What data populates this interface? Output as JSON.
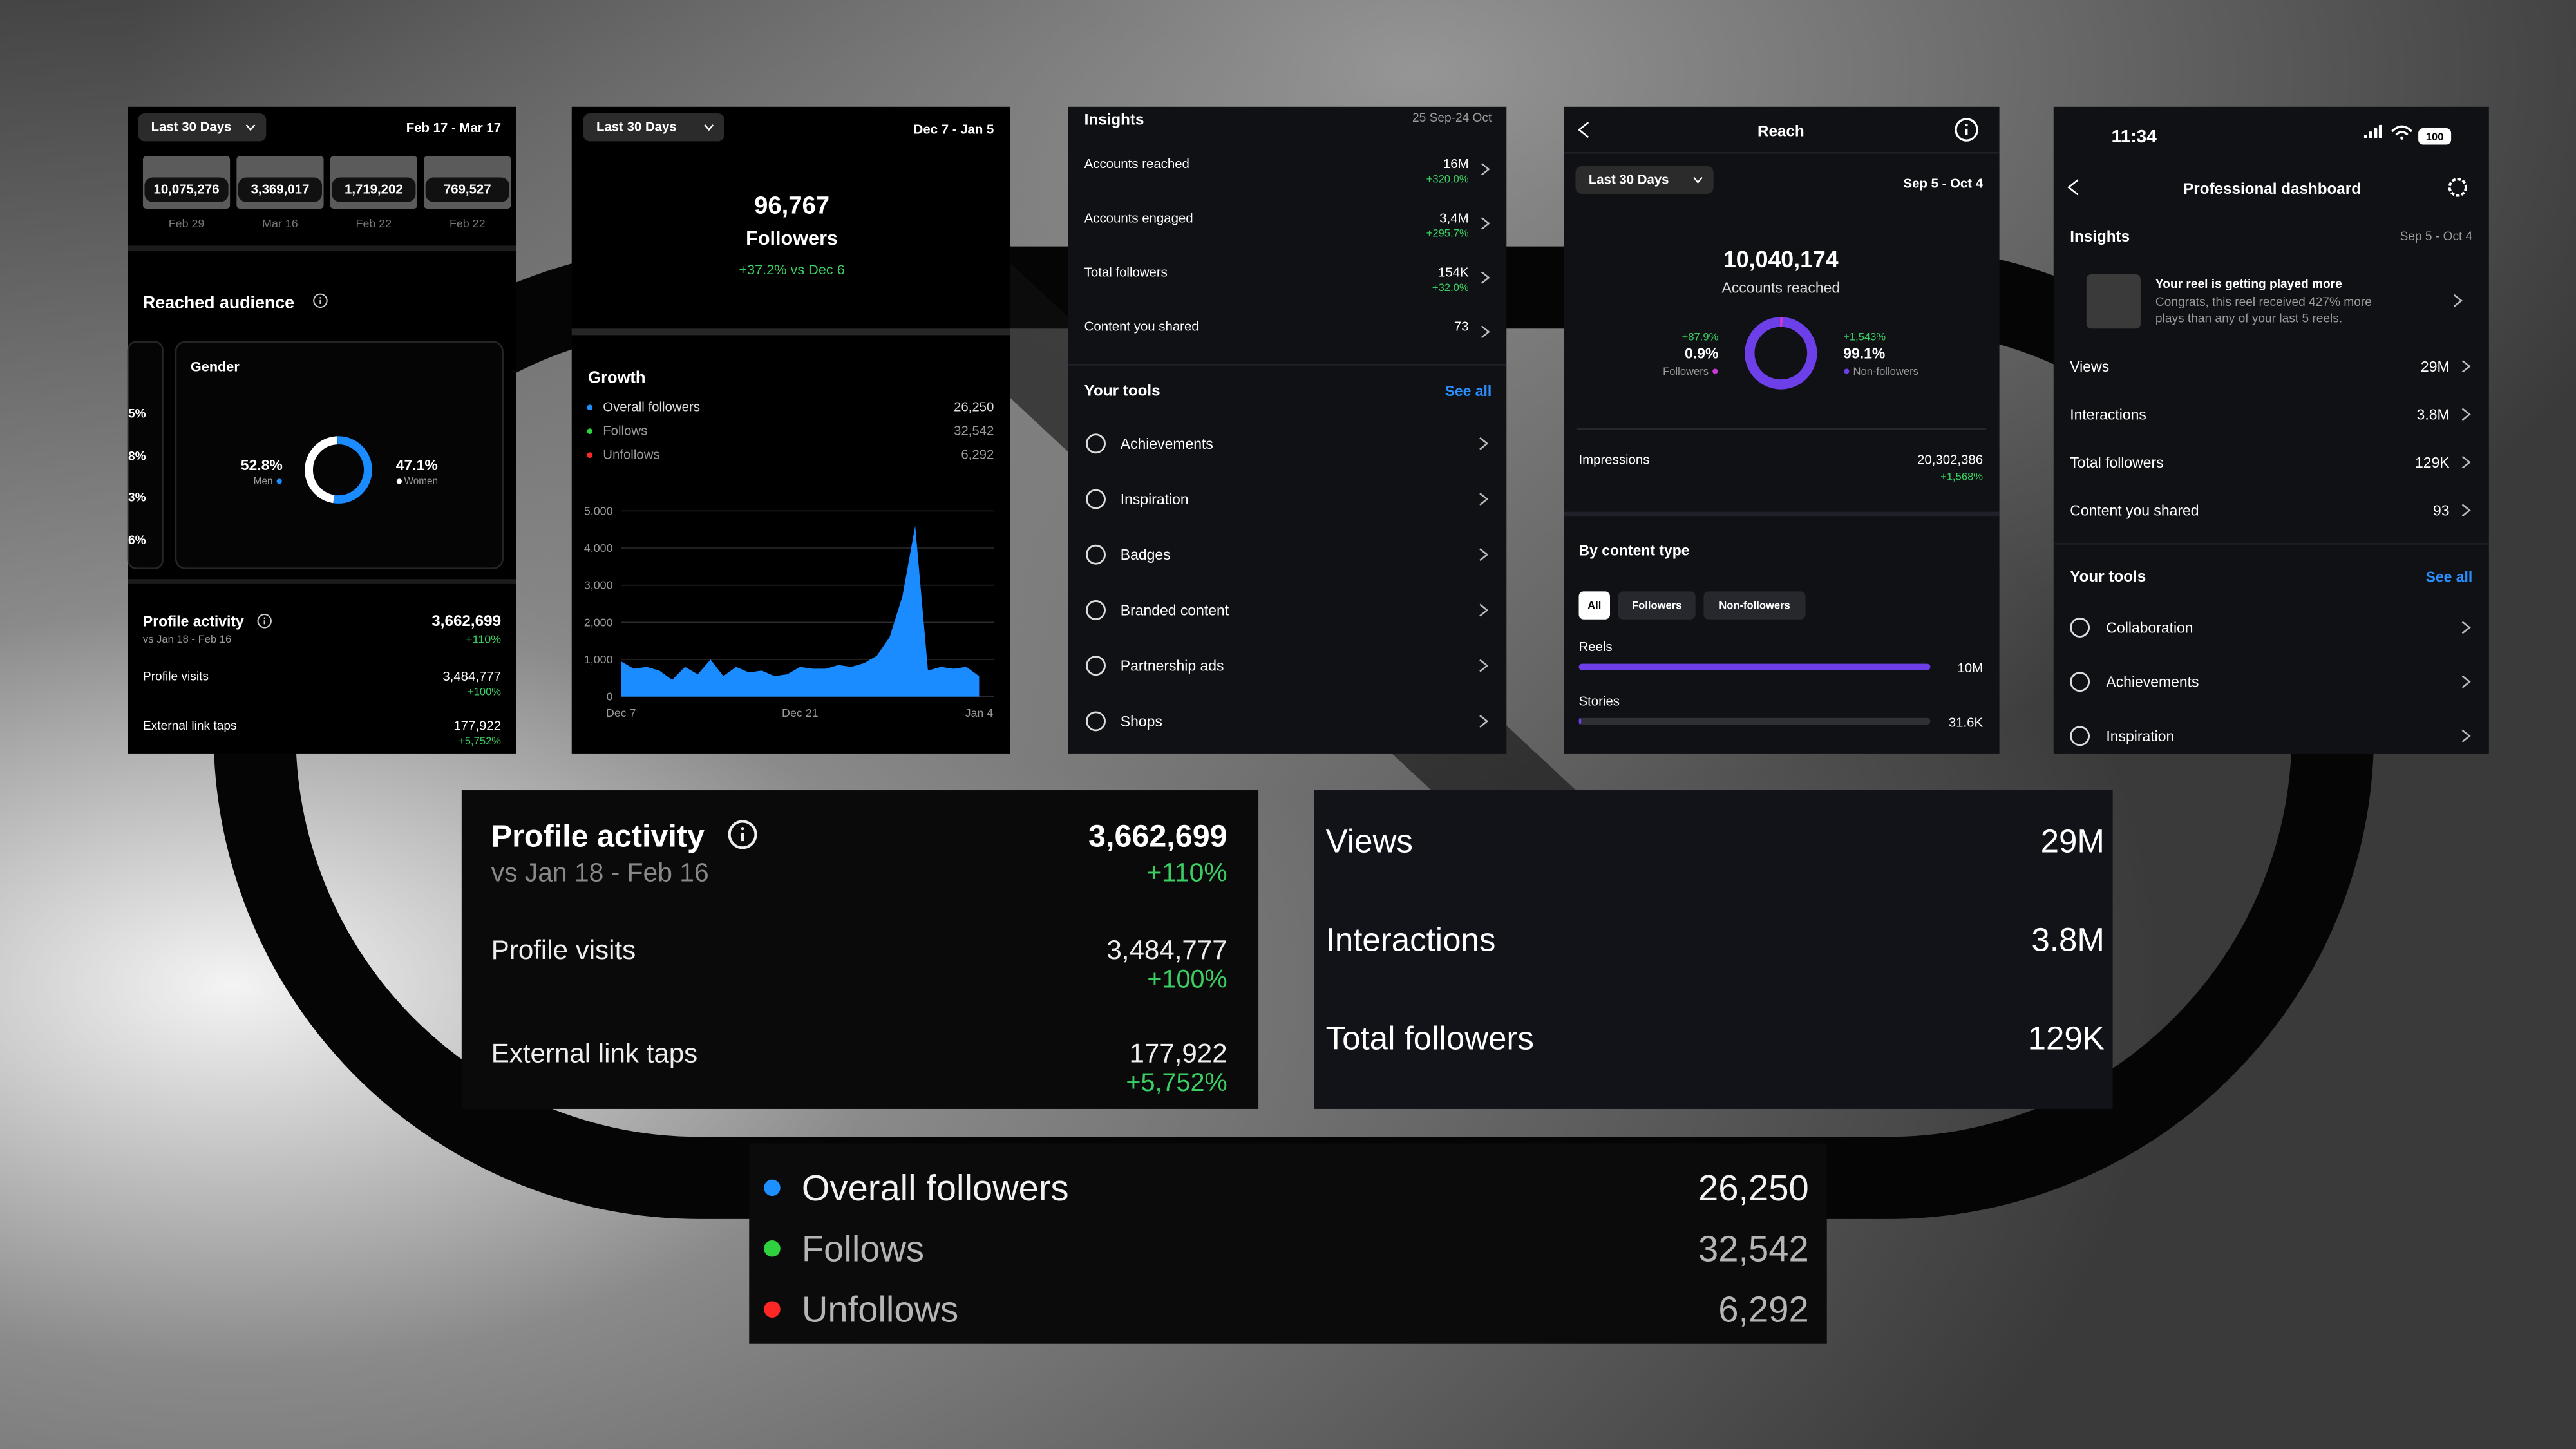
{
  "panel1": {
    "range": "Last 30 Days",
    "dates": "Feb 17 - Mar 17",
    "thumbs": [
      {
        "value": "10,075,276",
        "date": "Feb 29"
      },
      {
        "value": "3,369,017",
        "date": "Mar 16"
      },
      {
        "value": "1,719,202",
        "date": "Feb 22"
      },
      {
        "value": "769,527",
        "date": "Feb 22"
      }
    ],
    "reached_title": "Reached audience",
    "side_pcts": [
      "5%",
      "8%",
      "3%",
      "6%"
    ],
    "gender_title": "Gender",
    "gender": [
      {
        "name": "Men",
        "value": 52.8,
        "label": "52.8%",
        "color": "#1a8cff"
      },
      {
        "name": "Women",
        "value": 47.1,
        "label": "47.1%",
        "color": "#ffffff"
      }
    ],
    "activity_title": "Profile activity",
    "activity_sub": "vs Jan 18 - Feb 16",
    "activity_value": "3,662,699",
    "activity_change": "+110%",
    "rows": [
      {
        "label": "Profile visits",
        "value": "3,484,777",
        "change": "+100%"
      },
      {
        "label": "External link taps",
        "value": "177,922",
        "change": "+5,752%"
      }
    ]
  },
  "panel2": {
    "range": "Last 30 Days",
    "dates": "Dec 7 - Jan 5",
    "total": "96,767",
    "total_label": "Followers",
    "change": "+37.2% vs Dec 6",
    "growth_title": "Growth",
    "legend": [
      {
        "name": "Overall followers",
        "value": "26,250",
        "color": "#1e8fff"
      },
      {
        "name": "Follows",
        "value": "32,542",
        "color": "#2fd13f"
      },
      {
        "name": "Unfollows",
        "value": "6,292",
        "color": "#ff2626"
      }
    ],
    "chart": {
      "type": "area",
      "color": "#1a8cff",
      "categories": [
        "Dec 7",
        null,
        null,
        null,
        null,
        null,
        null,
        null,
        null,
        null,
        null,
        null,
        null,
        null,
        "Dec 21",
        null,
        null,
        null,
        null,
        null,
        null,
        null,
        null,
        null,
        null,
        null,
        null,
        null,
        "Jan 4"
      ],
      "values": [
        950,
        750,
        800,
        700,
        450,
        800,
        600,
        1000,
        550,
        800,
        650,
        700,
        550,
        600,
        800,
        750,
        750,
        850,
        800,
        900,
        1100,
        1600,
        2700,
        4600,
        700,
        800,
        750,
        800,
        550
      ],
      "ylim": [
        0,
        5000
      ],
      "yticks": [
        0,
        {
          "value": 1000,
          "label": "1,000"
        },
        {
          "value": 2000,
          "label": "2,000"
        },
        {
          "value": 3000,
          "label": "3,000"
        },
        {
          "value": 4000,
          "label": "4,000"
        },
        {
          "value": 5000,
          "label": "5,000"
        }
      ],
      "grid": true
    }
  },
  "panel3": {
    "title": "Insights",
    "dates": "25 Sep-24 Oct",
    "rows": [
      {
        "label": "Accounts reached",
        "value": "16M",
        "change": "+320,0%"
      },
      {
        "label": "Accounts engaged",
        "value": "3,4M",
        "change": "+295,7%"
      },
      {
        "label": "Total followers",
        "value": "154K",
        "change": "+32,0%"
      },
      {
        "label": "Content you shared",
        "value": "73"
      }
    ],
    "tools_title": "Your tools",
    "see_all": "See all",
    "tools": [
      "Achievements",
      "Inspiration",
      "Badges",
      "Branded content",
      "Partnership ads",
      "Shops"
    ]
  },
  "panel4": {
    "title": "Reach",
    "range": "Last 30 Days",
    "dates": "Sep 5 - Oct 4",
    "total": "10,040,174",
    "total_label": "Accounts reached",
    "audience": [
      {
        "name": "Followers",
        "value": 0.9,
        "label": "0.9%",
        "change": "+87.9%",
        "color": "#c73ad6"
      },
      {
        "name": "Non-followers",
        "value": 99.1,
        "label": "99.1%",
        "change": "+1,543%",
        "color": "#6c3fe8"
      }
    ],
    "impressions_label": "Impressions",
    "impressions": "20,302,386",
    "impressions_change": "+1,568%",
    "content_title": "By content type",
    "filters": [
      "All",
      "Followers",
      "Non-followers"
    ],
    "types": [
      {
        "name": "Reels",
        "value": 10000000,
        "label": "10M"
      },
      {
        "name": "Stories",
        "value": 31600,
        "label": "31.6K"
      }
    ]
  },
  "panel5": {
    "time": "11:34",
    "battery": "100",
    "title": "Professional dashboard",
    "insights": "Insights",
    "dates": "Sep 5 - Oct 4",
    "reel_title": "Your reel is getting played more",
    "reel_text": [
      "Congrats, this reel received 427% more",
      "plays than any of your last 5 reels."
    ],
    "rows": [
      {
        "label": "Views",
        "value": "29M"
      },
      {
        "label": "Interactions",
        "value": "3.8M"
      },
      {
        "label": "Total followers",
        "value": "129K"
      },
      {
        "label": "Content you shared",
        "value": "93"
      }
    ],
    "tools_title": "Your tools",
    "see_all": "See all",
    "tools": [
      "Collaboration",
      "Achievements",
      "Inspiration"
    ]
  }
}
